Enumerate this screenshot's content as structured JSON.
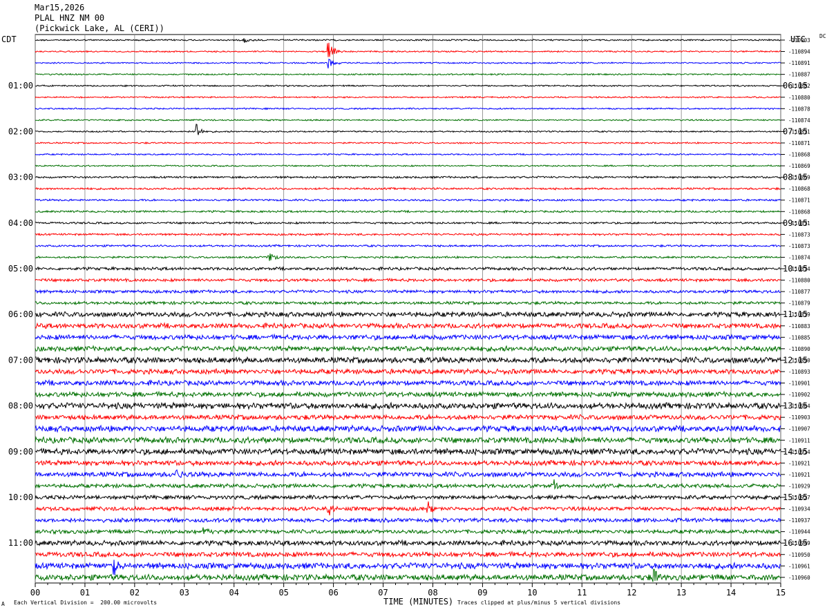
{
  "header": {
    "date": "Mar15,2026",
    "station": "PLAL HNZ NM 00",
    "location": "(Pickwick Lake, AL (CERI))"
  },
  "left_tz": "CDT",
  "right_tz": "UTC",
  "right_top_tag": "DC",
  "footer": {
    "left_note": "Each Vertical Division =  200.00 microvolts",
    "x_axis_title": "TIME (MINUTES)",
    "right_note": "Traces clipped at plus/minus 5 vertical divisions",
    "corner_mark": "A"
  },
  "chart_data": {
    "type": "line",
    "title": "PLAL HNZ NM 00",
    "xlabel": "TIME (MINUTES)",
    "xlim": [
      0,
      15
    ],
    "x_ticks": [
      "00",
      "01",
      "02",
      "03",
      "04",
      "05",
      "06",
      "07",
      "08",
      "09",
      "10",
      "11",
      "12",
      "13",
      "14",
      "15"
    ],
    "trace_count": 48,
    "trace_colors": [
      "#000000",
      "#ff0000",
      "#0000ff",
      "#007000"
    ],
    "left_hour_labels": [
      "01:00",
      "02:00",
      "03:00",
      "04:00",
      "05:00",
      "06:00",
      "07:00",
      "08:00",
      "09:00",
      "10:00",
      "11:00"
    ],
    "right_hour_labels": [
      "06:15",
      "07:15",
      "08:15",
      "09:15",
      "10:15",
      "11:15",
      "12:15",
      "13:15",
      "14:15",
      "15:15",
      "16:15"
    ],
    "trace_offsets": [
      "-110903",
      "-110894",
      "-110891",
      "-110887",
      "-110882",
      "-110880",
      "-110878",
      "-110874",
      "-110871",
      "-110871",
      "-110868",
      "-110869",
      "-110869",
      "-110868",
      "-110871",
      "-110868",
      "-110871",
      "-110873",
      "-110873",
      "-110874",
      "-110874",
      "-110880",
      "-110877",
      "-110879",
      "-110879",
      "-110883",
      "-110885",
      "-110890",
      "-110890",
      "-110893",
      "-110901",
      "-110902",
      "-110904",
      "-110903",
      "-110907",
      "-110911",
      "-110914",
      "-110921",
      "-110921",
      "-110929",
      "-110927",
      "-110934",
      "-110937",
      "-110944",
      "-110949",
      "-110950",
      "-110961",
      "-110960"
    ],
    "noise_amplitude_per_trace": [
      1.5,
      1.5,
      1.5,
      1.5,
      1.5,
      1.5,
      1.5,
      1.5,
      1.5,
      1.5,
      1.5,
      1.5,
      2,
      2,
      2,
      2,
      2,
      2,
      2,
      2,
      3,
      3,
      3,
      3,
      5,
      5,
      5,
      5,
      6,
      5,
      5,
      5,
      6,
      5,
      6,
      6,
      6,
      5,
      5,
      4,
      4,
      4,
      4,
      4,
      5,
      5,
      6,
      6
    ],
    "events": [
      {
        "trace": 0,
        "minute": 4.2,
        "amplitude": 5
      },
      {
        "trace": 1,
        "minute": 5.9,
        "amplitude": 14
      },
      {
        "trace": 2,
        "minute": 5.9,
        "amplitude": 8
      },
      {
        "trace": 8,
        "minute": 3.25,
        "amplitude": 14
      },
      {
        "trace": 19,
        "minute": 4.7,
        "amplitude": 9
      },
      {
        "trace": 41,
        "minute": 5.9,
        "amplitude": 14
      },
      {
        "trace": 41,
        "minute": 7.9,
        "amplitude": 12
      },
      {
        "trace": 38,
        "minute": 2.85,
        "amplitude": 10
      },
      {
        "trace": 46,
        "minute": 1.6,
        "amplitude": 12
      },
      {
        "trace": 47,
        "minute": 12.45,
        "amplitude": 12
      },
      {
        "trace": 43,
        "minute": 3.4,
        "amplitude": 8
      },
      {
        "trace": 39,
        "minute": 10.45,
        "amplitude": 8
      }
    ]
  }
}
